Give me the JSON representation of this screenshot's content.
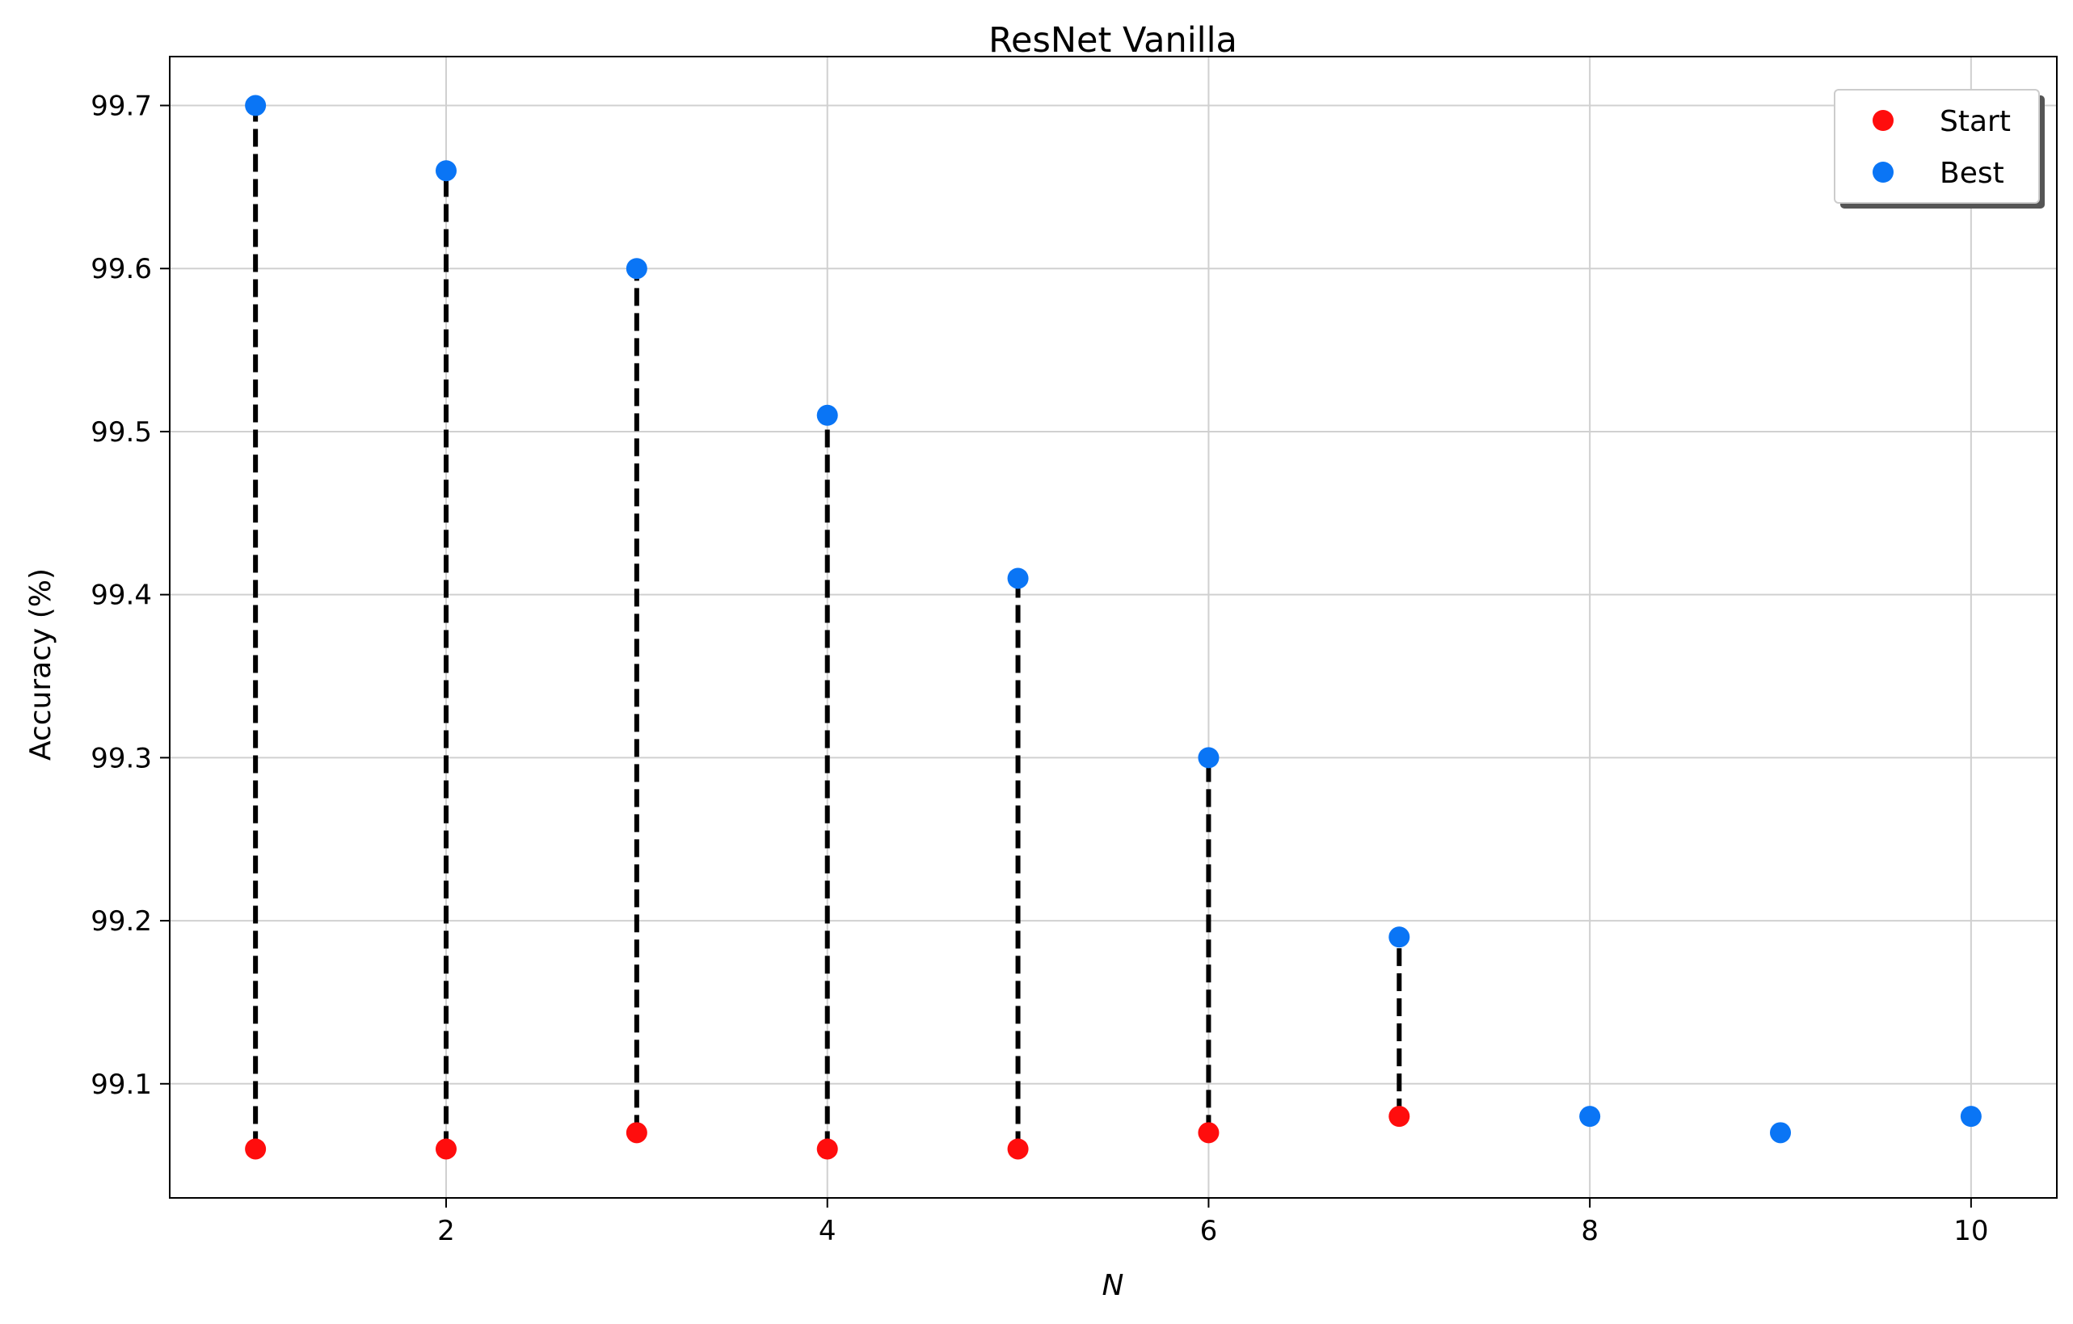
{
  "chart_data": {
    "type": "scatter",
    "title": "ResNet Vanilla",
    "xlabel": "N",
    "ylabel": "Accuracy (%)",
    "xlim": [
      0.55,
      10.45
    ],
    "ylim": [
      99.03,
      99.73
    ],
    "xticks": [
      2,
      4,
      6,
      8,
      10
    ],
    "yticks": [
      99.1,
      99.2,
      99.3,
      99.4,
      99.5,
      99.6,
      99.7
    ],
    "grid": true,
    "legend_position": "top-right",
    "series": [
      {
        "name": "Start",
        "color": "#ff0d0d",
        "x": [
          1,
          2,
          3,
          4,
          5,
          6,
          7
        ],
        "y": [
          99.06,
          99.06,
          99.07,
          99.06,
          99.06,
          99.07,
          99.08
        ]
      },
      {
        "name": "Best",
        "color": "#0a75f5",
        "x": [
          1,
          2,
          3,
          4,
          5,
          6,
          7,
          8,
          9,
          10
        ],
        "y": [
          99.7,
          99.66,
          99.6,
          99.51,
          99.41,
          99.3,
          99.19,
          99.08,
          99.07,
          99.08
        ]
      }
    ],
    "connectors": {
      "color": "#000000",
      "style": "dashed",
      "pairs": [
        {
          "x": 1,
          "from": 99.06,
          "to": 99.7
        },
        {
          "x": 2,
          "from": 99.06,
          "to": 99.66
        },
        {
          "x": 3,
          "from": 99.07,
          "to": 99.6
        },
        {
          "x": 4,
          "from": 99.06,
          "to": 99.51
        },
        {
          "x": 5,
          "from": 99.06,
          "to": 99.41
        },
        {
          "x": 6,
          "from": 99.07,
          "to": 99.3
        },
        {
          "x": 7,
          "from": 99.08,
          "to": 99.19
        }
      ]
    }
  }
}
